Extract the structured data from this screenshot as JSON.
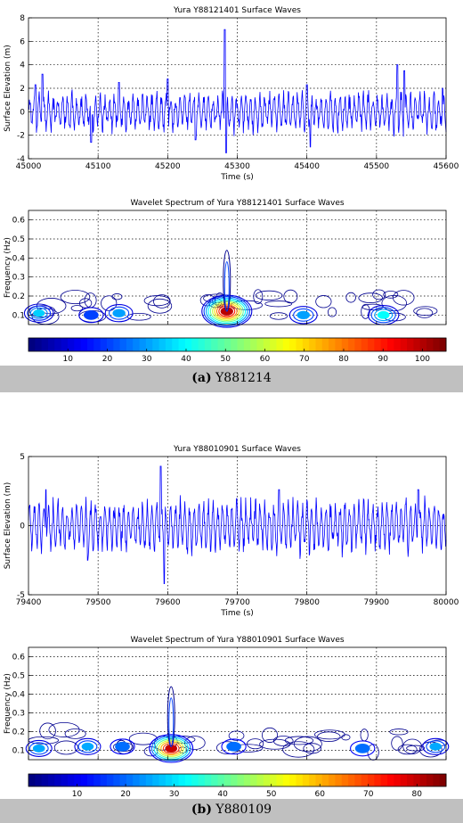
{
  "panels": [
    {
      "caption_tag": "(a)",
      "caption_text": "Y881214",
      "series_name": "Y88121401",
      "wave": {
        "title": "Yura Y88121401 Surface Waves",
        "xlabel": "Time  (s)",
        "ylabel": "Surface Elevation  (m)",
        "xlim": [
          45000,
          45600
        ],
        "ylim": [
          -4,
          8
        ],
        "xticks": [
          45000,
          45100,
          45200,
          45300,
          45400,
          45500,
          45600
        ],
        "yticks": [
          -4,
          -2,
          0,
          2,
          4,
          6,
          8
        ]
      },
      "spectrum": {
        "title": "Wavelet Spectrum of Yura Y88121401 Surface Waves",
        "ylabel": "Frequency  (Hz)",
        "ylim": [
          0.05,
          0.65
        ],
        "yticks": [
          0.1,
          0.2,
          0.3,
          0.4,
          0.5,
          0.6
        ],
        "colorbar_ticks": [
          10,
          20,
          30,
          40,
          50,
          60,
          70,
          80,
          90,
          100
        ],
        "colorbar_range": [
          0,
          106
        ]
      }
    },
    {
      "caption_tag": "(b)",
      "caption_text": "Y880109",
      "series_name": "Y88010901",
      "wave": {
        "title": "Yura Y88010901 Surface Waves",
        "xlabel": "Time  (s)",
        "ylabel": "Surface Elevation  (m)",
        "xlim": [
          79400,
          80000
        ],
        "ylim": [
          -5,
          5
        ],
        "xticks": [
          79400,
          79500,
          79600,
          79700,
          79800,
          79900,
          80000
        ],
        "yticks": [
          -5,
          0,
          5
        ]
      },
      "spectrum": {
        "title": "Wavelet Spectrum of Yura Y88010901 Surface Waves",
        "ylabel": "Frequency  (Hz)",
        "ylim": [
          0.05,
          0.65
        ],
        "yticks": [
          0.1,
          0.2,
          0.3,
          0.4,
          0.5,
          0.6
        ],
        "colorbar_ticks": [
          10,
          20,
          30,
          40,
          50,
          60,
          70,
          80
        ],
        "colorbar_range": [
          0,
          86
        ]
      }
    }
  ],
  "chart_data": [
    {
      "type": "line",
      "title": "Yura Y88121401 Surface Waves",
      "xlabel": "Time  (s)",
      "ylabel": "Surface Elevation  (m)",
      "xlim": [
        45000,
        45600
      ],
      "ylim": [
        -4,
        8
      ],
      "grid": true,
      "peaks": [
        {
          "x": 45010,
          "y": 2.3
        },
        {
          "x": 45020,
          "y": 3.2
        },
        {
          "x": 45090,
          "y": -2.6
        },
        {
          "x": 45130,
          "y": 2.5
        },
        {
          "x": 45200,
          "y": 2.8
        },
        {
          "x": 45240,
          "y": -2.4
        },
        {
          "x": 45282,
          "y": 7.0
        },
        {
          "x": 45284,
          "y": -3.5
        },
        {
          "x": 45400,
          "y": 2.3
        },
        {
          "x": 45405,
          "y": -3.0
        },
        {
          "x": 45530,
          "y": 4.0
        },
        {
          "x": 45540,
          "y": 3.5
        },
        {
          "x": 45595,
          "y": 2.0
        }
      ]
    },
    {
      "type": "heatmap",
      "title": "Wavelet Spectrum of Yura Y88121401 Surface Waves",
      "ylabel": "Frequency  (Hz)",
      "xlim": [
        45000,
        45600
      ],
      "ylim": [
        0.05,
        0.65
      ],
      "colorbar": [
        0,
        106
      ],
      "blobs": [
        {
          "x": 45015,
          "f": 0.11,
          "peak": 35
        },
        {
          "x": 45090,
          "f": 0.1,
          "peak": 20
        },
        {
          "x": 45130,
          "f": 0.11,
          "peak": 30
        },
        {
          "x": 45285,
          "f": 0.12,
          "peak": 100
        },
        {
          "x": 45395,
          "f": 0.1,
          "peak": 30
        },
        {
          "x": 45510,
          "f": 0.1,
          "peak": 40
        }
      ]
    },
    {
      "type": "line",
      "title": "Yura Y88010901 Surface Waves",
      "xlabel": "Time  (s)",
      "ylabel": "Surface Elevation  (m)",
      "xlim": [
        79400,
        80000
      ],
      "ylim": [
        -5,
        5
      ],
      "grid": true,
      "peaks": [
        {
          "x": 79425,
          "y": 2.6
        },
        {
          "x": 79485,
          "y": -2.5
        },
        {
          "x": 79590,
          "y": 4.3
        },
        {
          "x": 79595,
          "y": -4.2
        },
        {
          "x": 79760,
          "y": 2.6
        },
        {
          "x": 79960,
          "y": 2.6
        }
      ]
    },
    {
      "type": "heatmap",
      "title": "Wavelet Spectrum of Yura Y88010901 Surface Waves",
      "ylabel": "Frequency  (Hz)",
      "xlim": [
        79400,
        80000
      ],
      "ylim": [
        0.05,
        0.65
      ],
      "colorbar": [
        0,
        86
      ],
      "blobs": [
        {
          "x": 79415,
          "f": 0.11,
          "peak": 25
        },
        {
          "x": 79485,
          "f": 0.12,
          "peak": 25
        },
        {
          "x": 79535,
          "f": 0.12,
          "peak": 20
        },
        {
          "x": 79605,
          "f": 0.11,
          "peak": 80
        },
        {
          "x": 79695,
          "f": 0.12,
          "peak": 20
        },
        {
          "x": 79880,
          "f": 0.11,
          "peak": 20
        },
        {
          "x": 79985,
          "f": 0.12,
          "peak": 25
        }
      ]
    }
  ]
}
